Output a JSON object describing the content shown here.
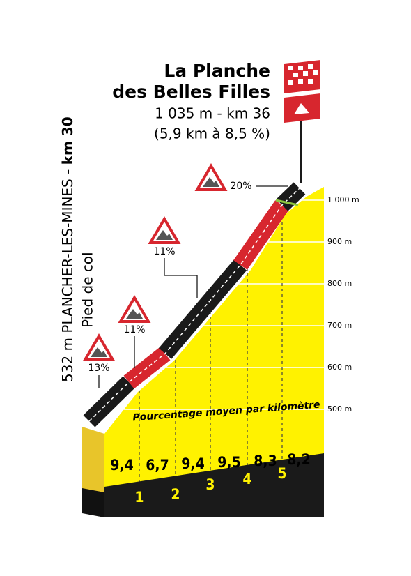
{
  "header": {
    "title": [
      "La Planche",
      "des Belles Filles"
    ],
    "subtitle": "1 035 m - km 36",
    "detail": "(5,9 km à 8,5 %)"
  },
  "start": {
    "place": "532 m PLANCHER-LES-MINES - ",
    "km": "km 30",
    "note": "Pied de col"
  },
  "gradient_signs": [
    "13%",
    "11%",
    "11%",
    "20%"
  ],
  "altitude_labels": [
    "1 000 m",
    "900 m",
    "800 m",
    "700 m",
    "600 m",
    "500 m"
  ],
  "caption": "Pourcentage moyen par kilomètre",
  "km_gradients": [
    "9,4",
    "6,7",
    "9,4",
    "9,5",
    "8,3",
    "8,2"
  ],
  "km_markers": [
    "1",
    "2",
    "3",
    "4",
    "5"
  ]
}
